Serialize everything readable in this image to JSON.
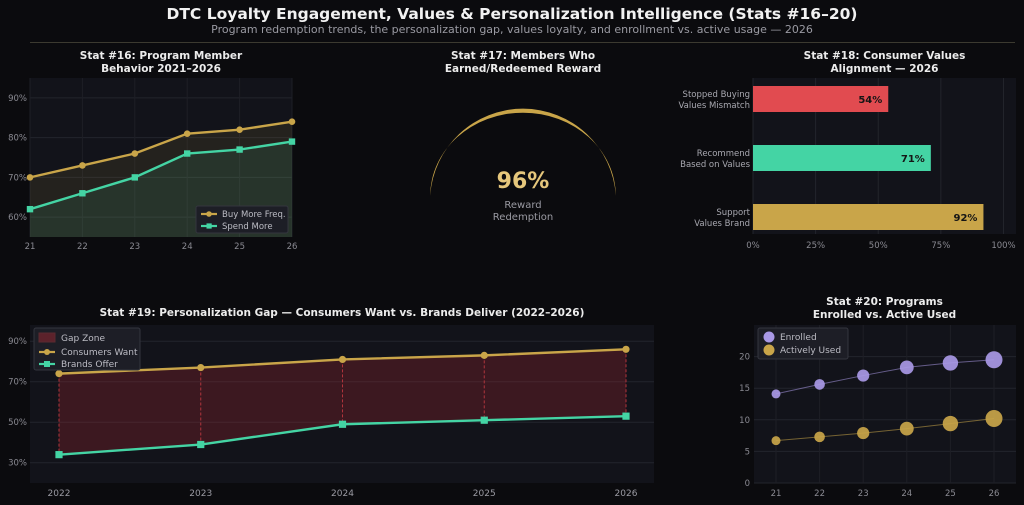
{
  "header": {
    "title": "DTC Loyalty Engagement, Values & Personalization Intelligence (Stats #16–20)",
    "subtitle": "Program redemption trends, the personalization gap, values loyalty, and enrollment vs. active usage — 2026"
  },
  "colors": {
    "background": "#0b0b0e",
    "panel": "#12131a",
    "gold": "#c9a549",
    "teal": "#44d4a4",
    "red": "#e14b50",
    "purple": "#a999e6",
    "gold_light": "#e6c77c"
  },
  "chart_data": [
    {
      "id": "stat16",
      "type": "line",
      "title_line1": "Stat #16: Program Member",
      "title_line2": "Behavior 2021–2026",
      "x": [
        "21",
        "22",
        "23",
        "24",
        "25",
        "26"
      ],
      "series": [
        {
          "name": "Buy More Freq.",
          "values": [
            70,
            73,
            76,
            81,
            82,
            84
          ]
        },
        {
          "name": "Spend More",
          "values": [
            62,
            66,
            70,
            76,
            77,
            79
          ]
        }
      ],
      "ylim": [
        55,
        95
      ],
      "yticks": [
        "60%",
        "70%",
        "80%",
        "90%"
      ],
      "grid": true,
      "legend": "bottom-right"
    },
    {
      "id": "stat17",
      "type": "gauge",
      "title_line1": "Stat #17: Members Who",
      "title_line2": "Earned/Redeemed Reward",
      "value": 96,
      "value_label": "96%",
      "caption_line1": "Reward",
      "caption_line2": "Redemption"
    },
    {
      "id": "stat18",
      "type": "bar",
      "orientation": "horizontal",
      "title_line1": "Stat #18: Consumer Values",
      "title_line2": "Alignment — 2026",
      "categories": [
        {
          "line1": "Stopped Buying",
          "line2": "Values Mismatch"
        },
        {
          "line1": "Recommend",
          "line2": "Based on Values"
        },
        {
          "line1": "Support",
          "line2": "Values Brand"
        }
      ],
      "values": [
        54,
        71,
        92
      ],
      "value_labels": [
        "54%",
        "71%",
        "92%"
      ],
      "xlim": [
        0,
        105
      ],
      "xticks": [
        "0%",
        "25%",
        "50%",
        "75%",
        "100%"
      ]
    },
    {
      "id": "stat19",
      "type": "line",
      "title": "Stat #19: Personalization Gap — Consumers Want vs. Brands Deliver (2022–2026)",
      "x": [
        "2022",
        "2023",
        "2024",
        "2025",
        "2026"
      ],
      "series": [
        {
          "name": "Consumers Want",
          "values": [
            74,
            77,
            81,
            83,
            86
          ]
        },
        {
          "name": "Brands Offer",
          "values": [
            34,
            39,
            49,
            51,
            53
          ]
        }
      ],
      "gap_label": "Gap Zone",
      "ylim": [
        20,
        98
      ],
      "yticks": [
        "30%",
        "50%",
        "70%",
        "90%"
      ],
      "grid": true,
      "legend": "top-left"
    },
    {
      "id": "stat20",
      "type": "scatter",
      "title_line1": "Stat #20: Programs",
      "title_line2": "Enrolled vs. Active Used",
      "x": [
        "21",
        "22",
        "23",
        "24",
        "25",
        "26"
      ],
      "series": [
        {
          "name": "Enrolled",
          "values": [
            14.1,
            15.6,
            17.0,
            18.3,
            19.0,
            19.5
          ]
        },
        {
          "name": "Actively Used",
          "values": [
            6.7,
            7.3,
            7.9,
            8.6,
            9.4,
            10.2
          ]
        }
      ],
      "ylim": [
        0,
        25
      ],
      "yticks": [
        "0",
        "5",
        "10",
        "15",
        "20"
      ],
      "grid": true,
      "legend": "top-left"
    }
  ]
}
